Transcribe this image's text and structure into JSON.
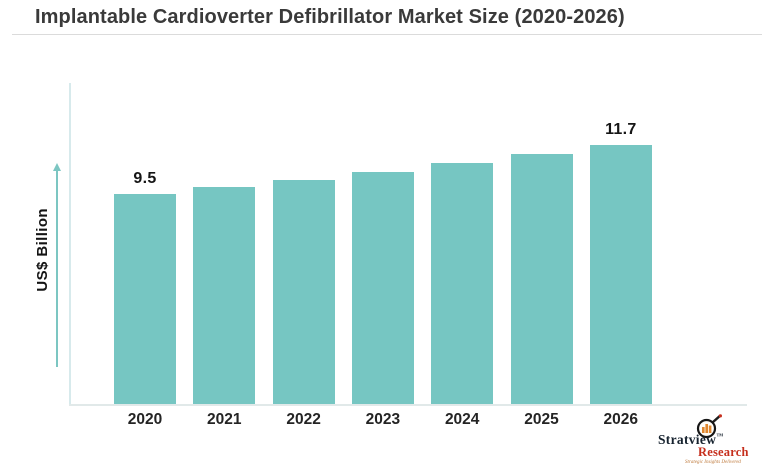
{
  "title": "Implantable Cardioverter Defibrillator Market Size (2020-2026)",
  "chart_data": {
    "type": "bar",
    "title": "Implantable Cardioverter Defibrillator Market Size (2020-2026)",
    "categories": [
      "2020",
      "2021",
      "2022",
      "2023",
      "2024",
      "2025",
      "2026"
    ],
    "values": [
      9.5,
      9.8,
      10.1,
      10.5,
      10.9,
      11.3,
      11.7
    ],
    "bar_labels": [
      "9.5",
      null,
      null,
      null,
      null,
      null,
      "11.7"
    ],
    "xlabel": "",
    "ylabel": "US$ Billion",
    "ylim": [
      0,
      14.5
    ],
    "grid": false,
    "legend": false,
    "bar_color": "#76c6c2",
    "axis_color": "#d7eaec",
    "arrow_color": "#7cc6c2"
  },
  "branding": {
    "primary": "Stratview",
    "trademark": "™",
    "secondary": "Research",
    "tagline": "Strategic Insights Delivered",
    "colors": {
      "primary_text": "#16222e",
      "secondary_text": "#c62f1d",
      "tagline_text": "#bf7b3e",
      "icon_bars": "#e0872e"
    }
  }
}
